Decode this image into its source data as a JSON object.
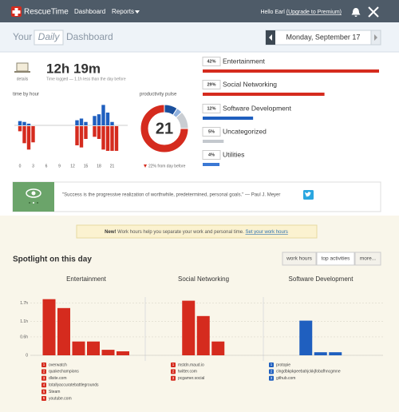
{
  "nav": {
    "brand": "RescueTime",
    "links": [
      "Dashboard",
      "Reports"
    ],
    "greeting": "Hello Earl",
    "upgrade": "(Upgrade to Premium)"
  },
  "header": {
    "prefix": "Your",
    "period": "Daily",
    "suffix": "Dashboard",
    "date": "Monday, September 17"
  },
  "summary": {
    "details": "details",
    "total": "12h 19m",
    "note": "Time logged — 1.1h less than the day before"
  },
  "time_by_hour": {
    "type": "bar",
    "title": "time by hour",
    "xticks": [
      0,
      3,
      6,
      9,
      12,
      15,
      18,
      21
    ],
    "productive": [
      10,
      8,
      4,
      0,
      0,
      0,
      0,
      0,
      0,
      0,
      0,
      0,
      0,
      12,
      16,
      8,
      0,
      22,
      26,
      48,
      30,
      8,
      0,
      0
    ],
    "distracting": [
      12,
      40,
      55,
      38,
      0,
      0,
      0,
      0,
      0,
      0,
      0,
      0,
      0,
      45,
      50,
      30,
      0,
      25,
      30,
      55,
      58,
      58,
      58,
      0
    ],
    "productive_color": "#1f5fbf",
    "distracting_color": "#d52b1e"
  },
  "pulse": {
    "type": "pie",
    "title": "productivity pulse",
    "score": 21,
    "change": "22% from day before",
    "ring_values": [
      9,
      4,
      12,
      75
    ],
    "ring_colors": [
      "#1a4f9c",
      "#8fb0dc",
      "#c9cdd2",
      "#d52b1e"
    ]
  },
  "category_bars": {
    "type": "bar",
    "values": [
      42,
      29,
      12,
      5,
      4
    ],
    "value_labels": [
      "42%",
      "29%",
      "12%",
      "5%",
      "4%"
    ],
    "names": [
      "Entertainment",
      "Social Networking",
      "Software Development",
      "Uncategorized",
      "Utilities"
    ],
    "colors": [
      "#d52b1e",
      "#d52b1e",
      "#1f5fbf",
      "#c4c9ce",
      "#3a78d4"
    ]
  },
  "quote": {
    "text": "\"Success is the progressive realization of worthwhile, predetermined, personal goals.\" — Paul J. Meyer"
  },
  "notice": {
    "badge": "New!",
    "text": "Work hours help you separate your work and personal time.",
    "link": "Set your work hours"
  },
  "spotlight": {
    "title": "Spotlight on this day",
    "tabs": [
      "work hours",
      "top activities",
      "more..."
    ],
    "active_tab": 1,
    "type": "bar",
    "ylim": [
      0,
      1.9
    ],
    "yticks": [
      0,
      {
        "value": 0.6,
        "label": "0.6h"
      },
      {
        "value": 1.1,
        "label": "1.1h"
      },
      {
        "value": 1.7,
        "label": "1.7h"
      }
    ],
    "panels": [
      {
        "title": "Entertainment",
        "color": "#d52b1e",
        "values": [
          1.83,
          1.54,
          0.45,
          0.45,
          0.18,
          0.13
        ],
        "ranks": [
          1,
          2,
          3,
          4,
          5,
          6
        ],
        "items": [
          "overwatch",
          "quakechampions",
          "dlsite.com",
          "totallyaccuratebattlegrounds",
          "Steam",
          "youtube.com"
        ]
      },
      {
        "title": "Social Networking",
        "color": "#d52b1e",
        "values": [
          1.78,
          1.28,
          0.45
        ],
        "ranks": [
          1,
          2,
          3
        ],
        "items": [
          "mstdn.maud.io",
          "twitter.com",
          "pcgamer.social"
        ]
      },
      {
        "title": "Software Development",
        "color": "#1f5fbf",
        "values": [
          1.13,
          0.1,
          0.1
        ],
        "ranks": [
          1,
          2,
          3
        ],
        "items": [
          "protopie",
          "clngdbkpkpeebahjckkjfobafhncgmne",
          "github.com"
        ]
      }
    ]
  }
}
